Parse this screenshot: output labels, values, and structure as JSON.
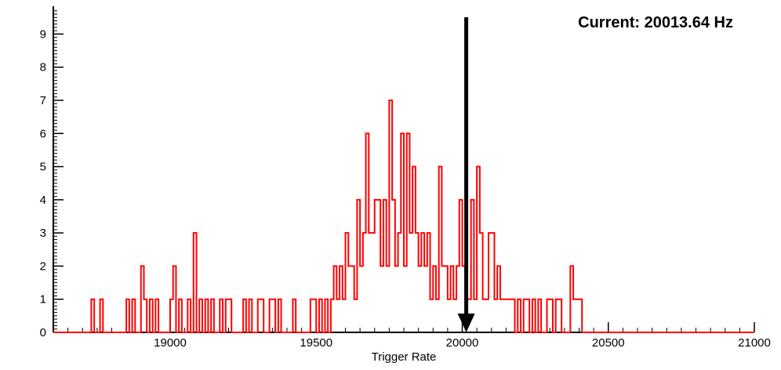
{
  "annotation": {
    "text": "Current: 20013.64 Hz"
  },
  "chart_data": {
    "type": "bar",
    "subtype": "step-histogram",
    "title": "",
    "xlabel": "Trigger Rate",
    "ylabel": "",
    "xlim": [
      18600,
      21000
    ],
    "ylim": [
      0,
      9.79
    ],
    "x_major_ticks": [
      19000,
      19500,
      20000,
      20500,
      21000
    ],
    "x_minor_step": 50,
    "y_major_ticks": [
      0,
      1,
      2,
      3,
      4,
      5,
      6,
      7,
      8,
      9
    ],
    "y_minor_step": 0.1,
    "grid": false,
    "legend": false,
    "line_color": "#ff0000",
    "axis_color": "#000000",
    "arrow": {
      "x": 20013.64,
      "color": "#000000",
      "label": "Current: 20013.64 Hz"
    },
    "bin_width": 10,
    "bins": [
      [
        18730,
        1
      ],
      [
        18760,
        1
      ],
      [
        18850,
        1
      ],
      [
        18870,
        1
      ],
      [
        18900,
        2
      ],
      [
        18910,
        1
      ],
      [
        18930,
        1
      ],
      [
        18950,
        1
      ],
      [
        19000,
        1
      ],
      [
        19010,
        2
      ],
      [
        19030,
        1
      ],
      [
        19060,
        1
      ],
      [
        19080,
        3
      ],
      [
        19100,
        1
      ],
      [
        19120,
        1
      ],
      [
        19140,
        1
      ],
      [
        19170,
        1
      ],
      [
        19190,
        1
      ],
      [
        19200,
        1
      ],
      [
        19250,
        1
      ],
      [
        19270,
        1
      ],
      [
        19300,
        1
      ],
      [
        19310,
        1
      ],
      [
        19340,
        1
      ],
      [
        19350,
        1
      ],
      [
        19370,
        1
      ],
      [
        19420,
        1
      ],
      [
        19480,
        1
      ],
      [
        19490,
        1
      ],
      [
        19510,
        1
      ],
      [
        19530,
        1
      ],
      [
        19550,
        1
      ],
      [
        19560,
        2
      ],
      [
        19570,
        1
      ],
      [
        19580,
        2
      ],
      [
        19590,
        1
      ],
      [
        19600,
        3
      ],
      [
        19610,
        2
      ],
      [
        19620,
        2
      ],
      [
        19630,
        1
      ],
      [
        19640,
        4
      ],
      [
        19650,
        2
      ],
      [
        19660,
        3
      ],
      [
        19670,
        6
      ],
      [
        19680,
        3
      ],
      [
        19690,
        3
      ],
      [
        19700,
        4
      ],
      [
        19710,
        4
      ],
      [
        19720,
        2
      ],
      [
        19730,
        4
      ],
      [
        19740,
        2
      ],
      [
        19750,
        7
      ],
      [
        19760,
        4
      ],
      [
        19770,
        2
      ],
      [
        19780,
        3
      ],
      [
        19790,
        6
      ],
      [
        19800,
        2
      ],
      [
        19810,
        6
      ],
      [
        19820,
        3
      ],
      [
        19830,
        5
      ],
      [
        19840,
        3
      ],
      [
        19850,
        2
      ],
      [
        19860,
        3
      ],
      [
        19870,
        2
      ],
      [
        19880,
        3
      ],
      [
        19890,
        1
      ],
      [
        19900,
        2
      ],
      [
        19910,
        1
      ],
      [
        19920,
        5
      ],
      [
        19930,
        2
      ],
      [
        19940,
        2
      ],
      [
        19950,
        1
      ],
      [
        19960,
        2
      ],
      [
        19970,
        1
      ],
      [
        19980,
        2
      ],
      [
        19990,
        4
      ],
      [
        20000,
        2
      ],
      [
        20010,
        1
      ],
      [
        20020,
        1
      ],
      [
        20030,
        4
      ],
      [
        20040,
        1
      ],
      [
        20050,
        5
      ],
      [
        20060,
        3
      ],
      [
        20070,
        1
      ],
      [
        20080,
        1
      ],
      [
        20090,
        3
      ],
      [
        20100,
        3
      ],
      [
        20110,
        1
      ],
      [
        20120,
        2
      ],
      [
        20130,
        1
      ],
      [
        20140,
        1
      ],
      [
        20150,
        1
      ],
      [
        20160,
        1
      ],
      [
        20170,
        1
      ],
      [
        20190,
        1
      ],
      [
        20210,
        1
      ],
      [
        20220,
        1
      ],
      [
        20240,
        1
      ],
      [
        20260,
        1
      ],
      [
        20290,
        1
      ],
      [
        20300,
        1
      ],
      [
        20320,
        1
      ],
      [
        20330,
        1
      ],
      [
        20370,
        2
      ],
      [
        20380,
        1
      ],
      [
        20390,
        1
      ],
      [
        20400,
        1
      ]
    ]
  }
}
